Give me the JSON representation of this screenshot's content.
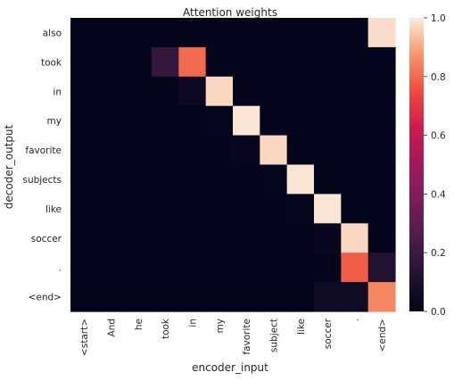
{
  "chart_data": {
    "type": "heatmap",
    "title": "Attention weights",
    "xlabel": "encoder_input",
    "ylabel": "decoder_output",
    "x_categories": [
      "<start>",
      "And",
      "he",
      "took",
      "in",
      "my",
      "favorite",
      "subject",
      "like",
      "soccer",
      ".",
      "<end>"
    ],
    "y_categories": [
      "also",
      "took",
      "in",
      "my",
      "favorite",
      "subjects",
      "like",
      "soccer",
      ".",
      "<end>"
    ],
    "values": [
      [
        0,
        0,
        0,
        0,
        0,
        0,
        0,
        0,
        0,
        0,
        0,
        0.98
      ],
      [
        0,
        0,
        0,
        0.18,
        0.8,
        0,
        0,
        0,
        0,
        0,
        0,
        0
      ],
      [
        0,
        0,
        0,
        0,
        0.04,
        0.97,
        0,
        0,
        0,
        0,
        0,
        0
      ],
      [
        0,
        0,
        0,
        0,
        0,
        0.01,
        0.99,
        0,
        0,
        0,
        0,
        0
      ],
      [
        0,
        0,
        0,
        0,
        0,
        0,
        0.02,
        0.97,
        0,
        0,
        0,
        0
      ],
      [
        0,
        0,
        0,
        0,
        0,
        0,
        0,
        0.01,
        0.99,
        0,
        0,
        0
      ],
      [
        0,
        0,
        0,
        0,
        0,
        0,
        0,
        0,
        0.01,
        0.99,
        0,
        0
      ],
      [
        0,
        0,
        0,
        0,
        0,
        0,
        0,
        0,
        0,
        0.02,
        0.97,
        0
      ],
      [
        0,
        0,
        0,
        0,
        0,
        0,
        0,
        0,
        0,
        0,
        0.78,
        0.12
      ],
      [
        0,
        0,
        0,
        0,
        0,
        0,
        0,
        0,
        0,
        0.05,
        0.05,
        0.85
      ]
    ],
    "colorbar": {
      "vmin": 0,
      "vmax": 1,
      "ticks": [
        "0.0",
        "0.2",
        "0.4",
        "0.6",
        "0.8",
        "1.0"
      ]
    },
    "colormap": "rocket",
    "grid": false
  }
}
